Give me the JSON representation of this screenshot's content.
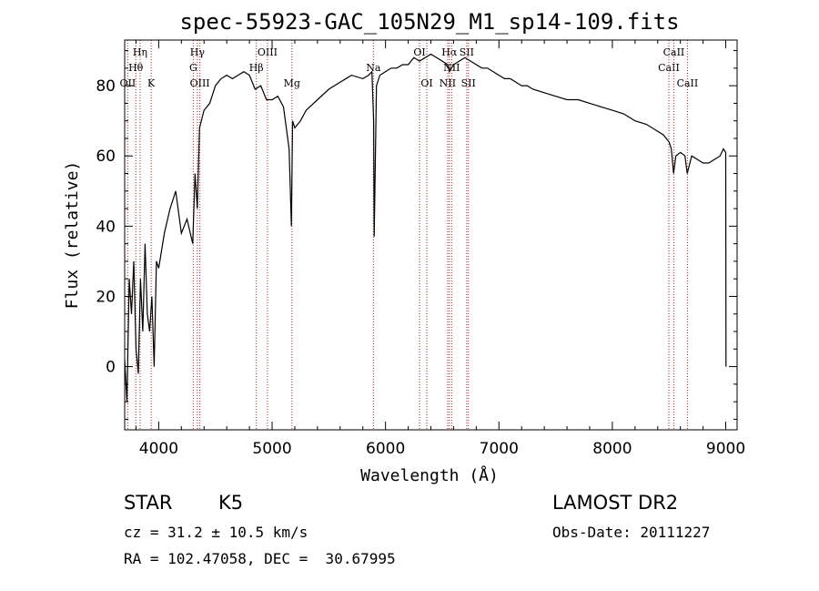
{
  "chart_data": {
    "type": "line",
    "title": "spec-55923-GAC_105N29_M1_sp14-109.fits",
    "xlabel": "Wavelength (Å)",
    "ylabel": "Flux (relative)",
    "xlim": [
      3700,
      9100
    ],
    "ylim": [
      -18,
      93
    ],
    "xticks": [
      4000,
      5000,
      6000,
      7000,
      8000,
      9000
    ],
    "yticks": [
      0,
      20,
      40,
      60,
      80
    ],
    "grid": false,
    "series": [
      {
        "x": [
          3700,
          3720,
          3740,
          3760,
          3780,
          3800,
          3820,
          3840,
          3860,
          3880,
          3900,
          3920,
          3940,
          3960,
          3980,
          4000,
          4050,
          4100,
          4150,
          4200,
          4250,
          4300,
          4320,
          4340,
          4360,
          4400,
          4450,
          4500,
          4550,
          4600,
          4650,
          4700,
          4750,
          4800,
          4850,
          4900,
          4950,
          5000,
          5050,
          5100,
          5150,
          5170,
          5180,
          5200,
          5250,
          5300,
          5400,
          5500,
          5600,
          5700,
          5800,
          5850,
          5880,
          5895,
          5900,
          5920,
          5950,
          6000,
          6050,
          6100,
          6150,
          6200,
          6250,
          6300,
          6350,
          6400,
          6450,
          6500,
          6550,
          6563,
          6600,
          6650,
          6700,
          6750,
          6800,
          6850,
          6900,
          6950,
          7000,
          7050,
          7100,
          7150,
          7200,
          7250,
          7300,
          7400,
          7500,
          7600,
          7700,
          7800,
          7900,
          8000,
          8100,
          8200,
          8300,
          8400,
          8450,
          8500,
          8520,
          8540,
          8560,
          8600,
          8640,
          8660,
          8700,
          8750,
          8800,
          8850,
          8900,
          8950,
          8980,
          9000,
          9002
        ],
        "values": [
          2,
          -10,
          25,
          15,
          30,
          5,
          -2,
          25,
          10,
          35,
          15,
          10,
          20,
          0,
          30,
          28,
          38,
          45,
          50,
          38,
          42,
          35,
          55,
          45,
          68,
          73,
          75,
          80,
          82,
          83,
          82,
          83,
          84,
          83,
          79,
          80,
          76,
          76,
          77,
          74,
          62,
          40,
          70,
          68,
          70,
          73,
          76,
          79,
          81,
          83,
          82,
          83,
          84,
          70,
          37,
          80,
          83,
          84,
          85,
          85,
          86,
          86,
          88,
          87,
          88,
          89,
          88,
          87,
          86,
          84,
          86,
          87,
          88,
          87,
          86,
          85,
          85,
          84,
          83,
          82,
          82,
          81,
          80,
          80,
          79,
          78,
          77,
          76,
          76,
          75,
          74,
          73,
          72,
          70,
          69,
          67,
          66,
          64,
          62,
          55,
          60,
          61,
          60,
          55,
          60,
          59,
          58,
          58,
          59,
          60,
          62,
          61,
          0
        ]
      }
    ],
    "line_markers": [
      {
        "label": "OII",
        "x": 3727,
        "row": 3
      },
      {
        "label": "Hθ",
        "x": 3798,
        "row": 2
      },
      {
        "label": "Hη",
        "x": 3836,
        "row": 1
      },
      {
        "label": "K",
        "x": 3934,
        "row": 3
      },
      {
        "label": "Hγ",
        "x": 4341,
        "row": 1
      },
      {
        "label": "G",
        "x": 4305,
        "row": 2
      },
      {
        "label": "OIII",
        "x": 4363,
        "row": 3
      },
      {
        "label": "Hβ",
        "x": 4861,
        "row": 2
      },
      {
        "label": "OIII",
        "x": 4959,
        "row": 1
      },
      {
        "label": "Mg",
        "x": 5175,
        "row": 3
      },
      {
        "label": "Na",
        "x": 5893,
        "row": 2
      },
      {
        "label": "OI",
        "x": 6300,
        "row": 1
      },
      {
        "label": "OI",
        "x": 6364,
        "row": 3
      },
      {
        "label": "Hα",
        "x": 6563,
        "row": 1
      },
      {
        "label": "NII",
        "x": 6548,
        "row": 3
      },
      {
        "label": "NII",
        "x": 6583,
        "row": 2
      },
      {
        "label": "SII",
        "x": 6716,
        "row": 1
      },
      {
        "label": "SII",
        "x": 6731,
        "row": 3
      },
      {
        "label": "CaII",
        "x": 8498,
        "row": 2
      },
      {
        "label": "CaII",
        "x": 8542,
        "row": 1
      },
      {
        "label": "CaII",
        "x": 8662,
        "row": 3
      }
    ],
    "colors": {
      "spectrum": "#000000",
      "markers": "#b22222",
      "axes": "#000000"
    }
  },
  "info": {
    "class": "STAR",
    "subclass": "K5",
    "survey": "LAMOST DR2",
    "cz": "cz = 31.2 ± 10.5 km/s",
    "obs_date": "Obs-Date: 20111227",
    "radec": "RA = 102.47058, DEC =  30.67995"
  }
}
